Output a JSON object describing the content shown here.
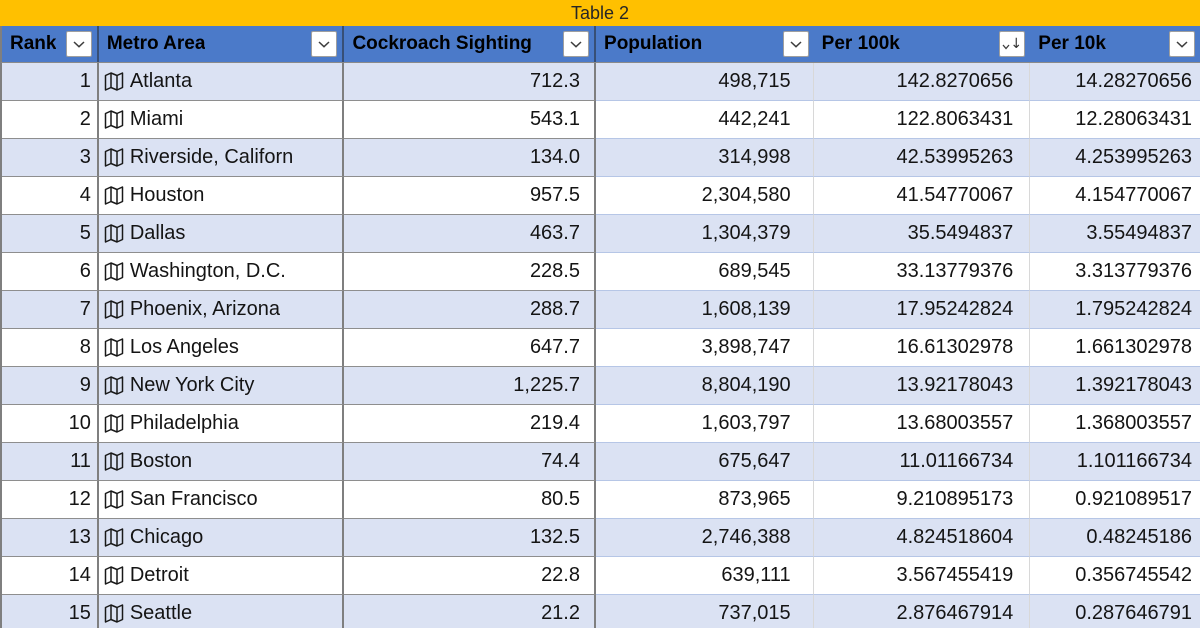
{
  "title": "Table 2",
  "columns": [
    {
      "id": "rank",
      "label": "Rank"
    },
    {
      "id": "metro",
      "label": "Metro Area"
    },
    {
      "id": "sightings",
      "label": "Cockroach Sighting"
    },
    {
      "id": "population",
      "label": "Population"
    },
    {
      "id": "per100k",
      "label": "Per 100k",
      "sort": "descending"
    },
    {
      "id": "per10k",
      "label": "Per 10k"
    }
  ],
  "rows": [
    {
      "rank": "1",
      "metro": "Atlanta",
      "sightings": "712.3",
      "population": "498,715",
      "per100k": "142.8270656",
      "per10k": "14.28270656"
    },
    {
      "rank": "2",
      "metro": "Miami",
      "sightings": "543.1",
      "population": "442,241",
      "per100k": "122.8063431",
      "per10k": "12.28063431"
    },
    {
      "rank": "3",
      "metro": "Riverside, Californ",
      "sightings": "134.0",
      "population": "314,998",
      "per100k": "42.53995263",
      "per10k": "4.253995263"
    },
    {
      "rank": "4",
      "metro": "Houston",
      "sightings": "957.5",
      "population": "2,304,580",
      "per100k": "41.54770067",
      "per10k": "4.154770067"
    },
    {
      "rank": "5",
      "metro": "Dallas",
      "sightings": "463.7",
      "population": "1,304,379",
      "per100k": "35.5494837",
      "per10k": "3.55494837"
    },
    {
      "rank": "6",
      "metro": "Washington, D.C.",
      "sightings": "228.5",
      "population": "689,545",
      "per100k": "33.13779376",
      "per10k": "3.313779376"
    },
    {
      "rank": "7",
      "metro": "Phoenix, Arizona",
      "sightings": "288.7",
      "population": "1,608,139",
      "per100k": "17.95242824",
      "per10k": "1.795242824"
    },
    {
      "rank": "8",
      "metro": "Los Angeles",
      "sightings": "647.7",
      "population": "3,898,747",
      "per100k": "16.61302978",
      "per10k": "1.661302978"
    },
    {
      "rank": "9",
      "metro": "New York City",
      "sightings": "1,225.7",
      "population": "8,804,190",
      "per100k": "13.92178043",
      "per10k": "1.392178043"
    },
    {
      "rank": "10",
      "metro": "Philadelphia",
      "sightings": "219.4",
      "population": "1,603,797",
      "per100k": "13.68003557",
      "per10k": "1.368003557"
    },
    {
      "rank": "11",
      "metro": "Boston",
      "sightings": "74.4",
      "population": "675,647",
      "per100k": "11.01166734",
      "per10k": "1.101166734"
    },
    {
      "rank": "12",
      "metro": "San Francisco",
      "sightings": "80.5",
      "population": "873,965",
      "per100k": "9.210895173",
      "per10k": "0.921089517"
    },
    {
      "rank": "13",
      "metro": "Chicago",
      "sightings": "132.5",
      "population": "2,746,388",
      "per100k": "4.824518604",
      "per10k": "0.48245186"
    },
    {
      "rank": "14",
      "metro": "Detroit",
      "sightings": "22.8",
      "population": "639,111",
      "per100k": "3.567455419",
      "per10k": "0.356745542"
    },
    {
      "rank": "15",
      "metro": "Seattle",
      "sightings": "21.2",
      "population": "737,015",
      "per100k": "2.876467914",
      "per10k": "0.287646791"
    }
  ],
  "icons": {
    "filter": "chevron-down",
    "sorted_filter": "chevron-down-with-sort-descending-arrow",
    "sort_arrow_glyph": "↓",
    "metro_cell": "map"
  },
  "colors": {
    "title_bg": "#FFC000",
    "title_text": "#262626",
    "header_bg": "#4B7AC9",
    "header_text": "#000000",
    "band_row_bg": "#DBE2F3",
    "white_row_bg": "#FFFFFF",
    "grid_dark": "#7F7F7F",
    "body_text": "#141414"
  }
}
